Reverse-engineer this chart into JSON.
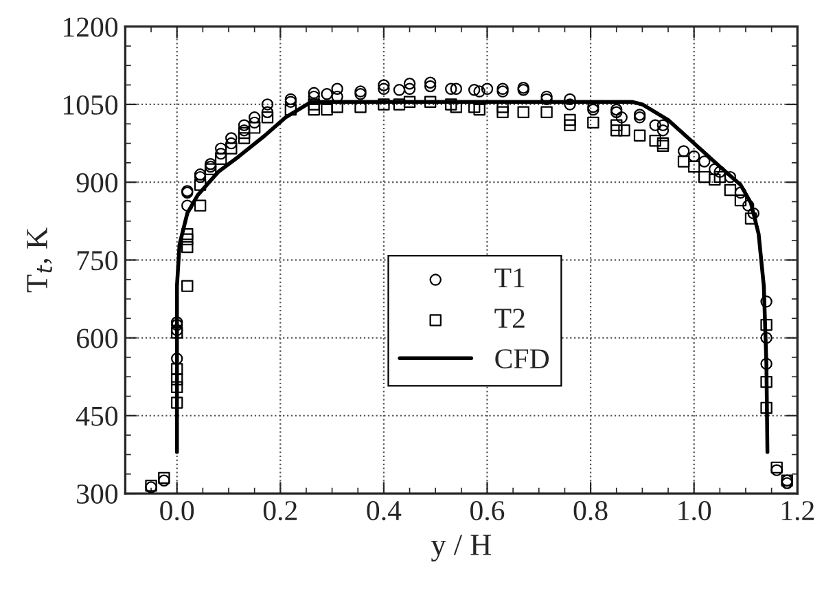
{
  "chart_data": {
    "type": "scatter",
    "xlabel": "y / H",
    "ylabel": "T$_{t}$, K",
    "xlim": [
      -0.1,
      1.2
    ],
    "xticks": [
      {
        "value": 0.0,
        "label": "0.0"
      },
      {
        "value": 0.2,
        "label": "0.2"
      },
      {
        "value": 0.4,
        "label": "0.4"
      },
      {
        "value": 0.6,
        "label": "0.6"
      },
      {
        "value": 0.8,
        "label": "0.8"
      },
      {
        "value": 1.0,
        "label": "1.0"
      },
      {
        "value": 1.2,
        "label": "1.2"
      }
    ],
    "ylim": [
      300,
      1200
    ],
    "yticks": [
      300,
      450,
      600,
      750,
      900,
      1050,
      1200
    ],
    "grid": true,
    "legend": "center",
    "series": [
      {
        "name": "T1",
        "marker": "circle",
        "color": "#000000",
        "x": [
          -0.05,
          -0.025,
          0.0,
          0.0,
          0.0,
          0.0,
          0.02,
          0.02,
          0.02,
          0.045,
          0.045,
          0.065,
          0.065,
          0.085,
          0.085,
          0.105,
          0.105,
          0.13,
          0.13,
          0.15,
          0.15,
          0.175,
          0.175,
          0.22,
          0.22,
          0.265,
          0.265,
          0.29,
          0.31,
          0.31,
          0.355,
          0.355,
          0.4,
          0.4,
          0.43,
          0.45,
          0.45,
          0.49,
          0.49,
          0.53,
          0.54,
          0.575,
          0.585,
          0.6,
          0.63,
          0.63,
          0.67,
          0.67,
          0.715,
          0.715,
          0.76,
          0.76,
          0.805,
          0.805,
          0.85,
          0.85,
          0.86,
          0.895,
          0.895,
          0.925,
          0.94,
          0.94,
          0.98,
          1.0,
          1.02,
          1.04,
          1.05,
          1.07,
          1.09,
          1.105,
          1.115,
          1.14,
          1.14,
          1.14,
          1.16,
          1.18,
          1.18
        ],
        "values": [
          312,
          325,
          560,
          615,
          625,
          630,
          855,
          880,
          883,
          910,
          915,
          930,
          935,
          955,
          965,
          975,
          985,
          1000,
          1010,
          1015,
          1025,
          1035,
          1050,
          1055,
          1060,
          1065,
          1072,
          1070,
          1065,
          1080,
          1070,
          1075,
          1080,
          1087,
          1078,
          1080,
          1090,
          1085,
          1092,
          1080,
          1080,
          1078,
          1075,
          1080,
          1075,
          1080,
          1078,
          1082,
          1060,
          1065,
          1060,
          1050,
          1045,
          1040,
          1040,
          1035,
          1025,
          1030,
          1025,
          1010,
          1000,
          1010,
          960,
          950,
          940,
          925,
          920,
          910,
          880,
          855,
          840,
          670,
          600,
          550,
          345,
          320,
          325
        ]
      },
      {
        "name": "T2",
        "marker": "square",
        "color": "#000000",
        "x": [
          -0.05,
          -0.025,
          0.0,
          0.0,
          0.0,
          0.0,
          0.0,
          0.02,
          0.02,
          0.02,
          0.02,
          0.045,
          0.045,
          0.065,
          0.085,
          0.105,
          0.13,
          0.13,
          0.15,
          0.175,
          0.22,
          0.265,
          0.265,
          0.29,
          0.31,
          0.355,
          0.4,
          0.43,
          0.45,
          0.49,
          0.53,
          0.54,
          0.575,
          0.585,
          0.63,
          0.63,
          0.67,
          0.715,
          0.76,
          0.76,
          0.805,
          0.85,
          0.85,
          0.865,
          0.895,
          0.925,
          0.94,
          0.94,
          0.98,
          1.0,
          1.02,
          1.04,
          1.05,
          1.07,
          1.09,
          1.11,
          1.14,
          1.14,
          1.14,
          1.16,
          1.18
        ],
        "values": [
          315,
          330,
          475,
          505,
          520,
          540,
          610,
          700,
          775,
          790,
          800,
          855,
          895,
          925,
          945,
          965,
          985,
          995,
          1005,
          1025,
          1040,
          1040,
          1050,
          1040,
          1045,
          1045,
          1050,
          1050,
          1055,
          1055,
          1050,
          1045,
          1045,
          1040,
          1035,
          1045,
          1035,
          1035,
          1010,
          1020,
          1015,
          1000,
          1010,
          1000,
          990,
          980,
          975,
          970,
          940,
          930,
          910,
          905,
          910,
          885,
          865,
          830,
          625,
          515,
          465,
          350,
          325
        ]
      },
      {
        "name": "CFD",
        "type": "line",
        "marker": "none",
        "line_style": "solid",
        "color": "#000000",
        "x": [
          0.0,
          0.0,
          0.005,
          0.02,
          0.04,
          0.08,
          0.12,
          0.17,
          0.21,
          0.26,
          0.88,
          0.9,
          0.95,
          1.0,
          1.05,
          1.09,
          1.11,
          1.125,
          1.135,
          1.14,
          1.142
        ],
        "values": [
          380,
          700,
          780,
          840,
          875,
          920,
          950,
          990,
          1025,
          1055,
          1055,
          1050,
          1020,
          975,
          930,
          895,
          860,
          800,
          700,
          550,
          380
        ]
      }
    ]
  }
}
